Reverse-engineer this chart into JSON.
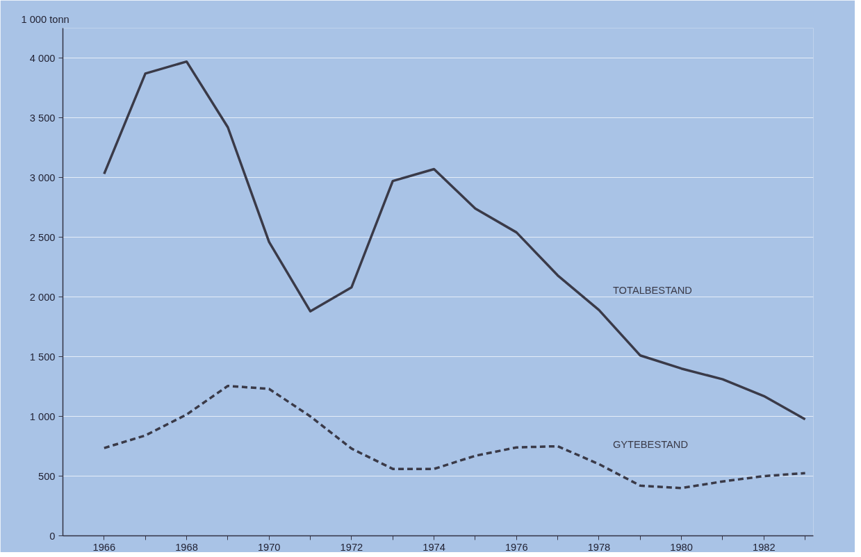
{
  "chart_data": {
    "type": "line",
    "ylabel": "1 000 tonn",
    "x": [
      1966,
      1967,
      1968,
      1969,
      1970,
      1971,
      1972,
      1973,
      1974,
      1975,
      1976,
      1977,
      1978,
      1979,
      1980,
      1981,
      1982,
      1983
    ],
    "series": [
      {
        "name": "TOTALBESTAND",
        "color": "#3a3a48",
        "line_style": "solid",
        "values": [
          3030,
          3870,
          3970,
          3420,
          2460,
          1880,
          2080,
          2970,
          3070,
          2740,
          2540,
          2180,
          1890,
          1510,
          1400,
          1310,
          1170,
          975
        ]
      },
      {
        "name": "GYTEBESTAND",
        "color": "#3a3a48",
        "line_style": "dashed",
        "values": [
          735,
          840,
          1015,
          1255,
          1230,
          1000,
          730,
          560,
          560,
          670,
          740,
          750,
          600,
          420,
          400,
          455,
          500,
          525
        ]
      }
    ],
    "xlim": [
      1965,
      1983.2
    ],
    "xticks": [
      1966,
      {
        "value": 1967,
        "label": null
      },
      1968,
      {
        "value": 1969,
        "label": null
      },
      1970,
      {
        "value": 1971,
        "label": null
      },
      1972,
      {
        "value": 1973,
        "label": null
      },
      1974,
      {
        "value": 1975,
        "label": null
      },
      1976,
      {
        "value": 1977,
        "label": null
      },
      1978,
      {
        "value": 1979,
        "label": null
      },
      1980,
      {
        "value": 1981,
        "label": null
      },
      1982,
      {
        "value": 1983,
        "label": null
      }
    ],
    "ylim": [
      0,
      4250
    ],
    "yticks": [
      0,
      500,
      {
        "value": 1000,
        "label": "1 000"
      },
      {
        "value": 1500,
        "label": "1 500"
      },
      {
        "value": 2000,
        "label": "2 000"
      },
      {
        "value": 2500,
        "label": "2 500"
      },
      {
        "value": 3000,
        "label": "3 000"
      },
      {
        "value": 3500,
        "label": "3 500"
      },
      {
        "value": 4000,
        "label": "4 000"
      }
    ],
    "grid": "y",
    "legend": false,
    "marker": "none"
  }
}
